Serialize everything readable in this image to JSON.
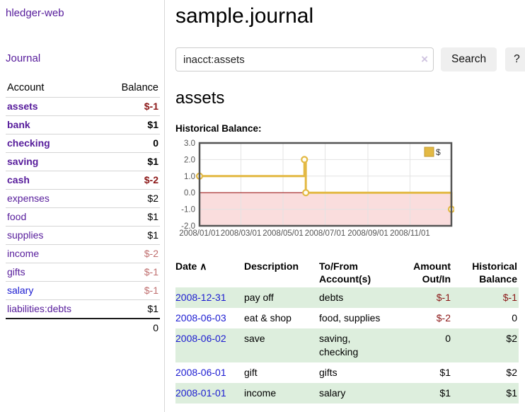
{
  "sidebar": {
    "app_title": "hledger-web",
    "journal_link": "Journal",
    "accounts_table": {
      "account_header": "Account",
      "balance_header": "Balance",
      "rows": [
        {
          "name": "assets",
          "balance": "$-1",
          "level": 1,
          "in_acct": true,
          "neg": "strong"
        },
        {
          "name": "bank",
          "balance": "$1",
          "level": 2,
          "in_acct": true,
          "neg": "none"
        },
        {
          "name": "checking",
          "balance": "0",
          "level": 3,
          "in_acct": true,
          "neg": "none"
        },
        {
          "name": "saving",
          "balance": "$1",
          "level": 3,
          "in_acct": true,
          "neg": "none"
        },
        {
          "name": "cash",
          "balance": "$-2",
          "level": 2,
          "in_acct": true,
          "neg": "strong"
        },
        {
          "name": "expenses",
          "balance": "$2",
          "level": 1,
          "in_acct": false,
          "neg": "none"
        },
        {
          "name": "food",
          "balance": "$1",
          "level": 2,
          "in_acct": false,
          "neg": "none"
        },
        {
          "name": "supplies",
          "balance": "$1",
          "level": 2,
          "in_acct": false,
          "neg": "none"
        },
        {
          "name": "income",
          "balance": "$-2",
          "level": 1,
          "in_acct": false,
          "neg": "soft"
        },
        {
          "name": "gifts",
          "balance": "$-1",
          "level": 2,
          "in_acct": false,
          "neg": "soft"
        },
        {
          "name": "salary",
          "balance": "$-1",
          "level": 2,
          "in_acct": false,
          "neg": "soft",
          "link_blue": true
        },
        {
          "name": "liabilities:debts",
          "balance": "$1",
          "level": 1,
          "in_acct": false,
          "neg": "none"
        }
      ],
      "total": "0"
    }
  },
  "main": {
    "title": "sample.journal",
    "search": {
      "value": "inacct:assets",
      "clear_icon": "×",
      "search_button": "Search",
      "help_button": "?"
    },
    "account_heading": "assets",
    "chart_label": "Historical Balance:",
    "register": {
      "headers": {
        "date": "Date",
        "sort_icon": "∧",
        "description": "Description",
        "accounts": "To/From Account(s)",
        "amount": "Amount Out/In",
        "balance": "Historical Balance"
      },
      "rows": [
        {
          "date": "2008-12-31",
          "description": "pay off",
          "accounts": "debts",
          "amount": "$-1",
          "amount_neg": true,
          "balance": "$-1",
          "balance_neg": true,
          "stripe": true
        },
        {
          "date": "2008-06-03",
          "description": "eat & shop",
          "accounts": "food, supplies",
          "amount": "$-2",
          "amount_neg": true,
          "balance": "0",
          "balance_neg": false,
          "stripe": false
        },
        {
          "date": "2008-06-02",
          "description": "save",
          "accounts": "saving, checking",
          "amount": "0",
          "amount_neg": false,
          "balance": "$2",
          "balance_neg": false,
          "stripe": true
        },
        {
          "date": "2008-06-01",
          "description": "gift",
          "accounts": "gifts",
          "amount": "$1",
          "amount_neg": false,
          "balance": "$2",
          "balance_neg": false,
          "stripe": false
        },
        {
          "date": "2008-01-01",
          "description": "income",
          "accounts": "salary",
          "amount": "$1",
          "amount_neg": false,
          "balance": "$1",
          "balance_neg": false,
          "stripe": true
        }
      ]
    }
  },
  "chart_data": {
    "type": "line",
    "step": true,
    "title": "Historical Balance:",
    "legend": "$",
    "legend_position": "top-right",
    "series": [
      {
        "name": "$",
        "points": [
          {
            "x": "2008-01-01",
            "y": 1
          },
          {
            "x": "2008-06-01",
            "y": 2
          },
          {
            "x": "2008-06-03",
            "y": 0
          },
          {
            "x": "2008-12-31",
            "y": -1
          }
        ]
      }
    ],
    "x_ticks": [
      "2008/01/01",
      "2008/03/01",
      "2008/05/01",
      "2008/07/01",
      "2008/09/01",
      "2008/11/01"
    ],
    "y_ticks": [
      3.0,
      2.0,
      1.0,
      0.0,
      -1.0,
      -2.0
    ],
    "xlim": [
      "2008-01-01",
      "2008-12-31"
    ],
    "ylim": [
      -2,
      3
    ],
    "grid": true,
    "line_color": "#e3b944",
    "marker_fill": "#fffdf3",
    "negative_region_fill": "#fadddd",
    "zero_line_color": "#a02020",
    "border_color": "#545454",
    "tick_label_color": "#555555"
  }
}
